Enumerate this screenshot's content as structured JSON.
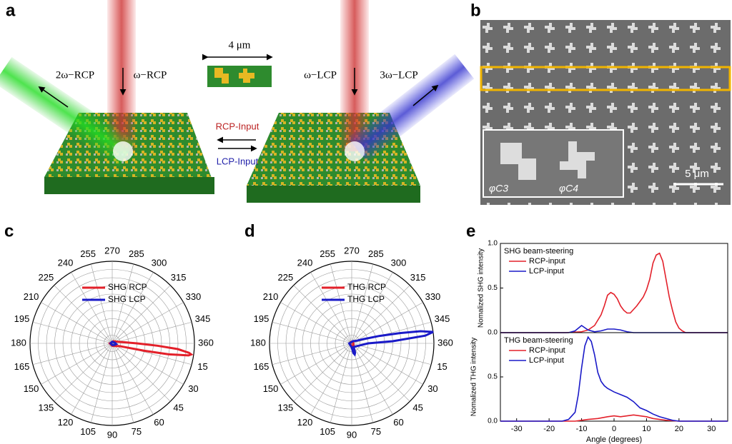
{
  "panels": {
    "a": {
      "label": "a",
      "beam_left": "2ω−RCP",
      "beam_in_left": "ω−RCP",
      "scale": "4 μm",
      "beam_in_right": "ω−LCP",
      "beam_right": "3ω−LCP",
      "rcp_input": "RCP-Input",
      "lcp_input": "LCP-Input"
    },
    "b": {
      "label": "b",
      "scale": "5 μm",
      "phi_c3": "φC3",
      "phi_c4": "φC4"
    },
    "c": {
      "label": "c"
    },
    "d": {
      "label": "d"
    },
    "e": {
      "label": "e"
    }
  },
  "chart_data": [
    {
      "type": "polar",
      "thetaticks": [
        15,
        30,
        45,
        60,
        75,
        90,
        105,
        120,
        135,
        150,
        165,
        180,
        195,
        210,
        225,
        240,
        255,
        270,
        285,
        300,
        315,
        330,
        345,
        360
      ],
      "rlim": [
        0,
        1
      ],
      "rticks": [
        0.1,
        0.2,
        0.3,
        0.4,
        0.5,
        0.6,
        0.7,
        0.8,
        0.9,
        1
      ],
      "grid": true,
      "series": [
        {
          "name": "SHG RCP",
          "color": "#e3202a",
          "theta": [
            180,
            300,
            340,
            355,
            0,
            3,
            5,
            7,
            8,
            9,
            11,
            13,
            16,
            20,
            40,
            90,
            180
          ],
          "values": [
            0.03,
            0.03,
            0.06,
            0.15,
            0.3,
            0.55,
            0.8,
            0.94,
            0.97,
            0.94,
            0.7,
            0.4,
            0.18,
            0.1,
            0.05,
            0.03,
            0.03
          ]
        },
        {
          "name": "SHG LCP",
          "color": "#1a1ac8",
          "theta": [
            0,
            10,
            20,
            40,
            90,
            180,
            270,
            340,
            360
          ],
          "values": [
            0.04,
            0.05,
            0.04,
            0.03,
            0.02,
            0.02,
            0.02,
            0.03,
            0.04
          ]
        }
      ]
    },
    {
      "type": "polar",
      "thetaticks": [
        15,
        30,
        45,
        60,
        75,
        90,
        105,
        120,
        135,
        150,
        165,
        180,
        195,
        210,
        225,
        240,
        255,
        270,
        285,
        300,
        315,
        330,
        345,
        360
      ],
      "rlim": [
        0,
        1
      ],
      "rticks": [
        0.1,
        0.2,
        0.3,
        0.4,
        0.5,
        0.6,
        0.7,
        0.8,
        0.9,
        1
      ],
      "grid": true,
      "series": [
        {
          "name": "THG RCP",
          "color": "#e3202a",
          "theta": [
            0,
            45,
            90,
            135,
            180,
            225,
            270,
            315,
            360
          ],
          "values": [
            0.02,
            0.03,
            0.04,
            0.02,
            0.02,
            0.02,
            0.02,
            0.02,
            0.02
          ]
        },
        {
          "name": "THG LCP",
          "color": "#1a1ac8",
          "theta": [
            60,
            70,
            75,
            80,
            90,
            180,
            300,
            330,
            340,
            345,
            348,
            350,
            352,
            354,
            357,
            360
          ],
          "values": [
            0.05,
            0.12,
            0.14,
            0.12,
            0.05,
            0.03,
            0.03,
            0.06,
            0.15,
            0.35,
            0.6,
            0.85,
            1.0,
            0.9,
            0.5,
            0.2
          ]
        }
      ]
    },
    {
      "type": "line",
      "ylabel": "Nomalized SHG intensity",
      "legend_title": "SHG beam-steering",
      "xlim": [
        -35,
        35
      ],
      "ylim": [
        0,
        1
      ],
      "yticks": [
        {
          "value": 0,
          "label": "0.0"
        },
        {
          "value": 0.5,
          "label": "0.5"
        },
        {
          "value": 1,
          "label": "1.0"
        }
      ],
      "series": [
        {
          "name": "RCP-input",
          "color": "#e3202a",
          "x": [
            -35,
            -15,
            -10,
            -8,
            -6,
            -4,
            -3,
            -2,
            -1,
            0,
            1,
            2,
            3,
            4,
            5,
            6,
            7,
            8,
            9,
            10,
            11,
            12,
            13,
            14,
            15,
            16,
            17,
            18,
            19,
            20,
            21,
            22,
            35
          ],
          "values": [
            0,
            0,
            0.01,
            0.03,
            0.08,
            0.2,
            0.3,
            0.42,
            0.45,
            0.43,
            0.38,
            0.3,
            0.25,
            0.22,
            0.22,
            0.26,
            0.3,
            0.35,
            0.4,
            0.48,
            0.6,
            0.78,
            0.87,
            0.89,
            0.8,
            0.6,
            0.4,
            0.25,
            0.12,
            0.05,
            0.02,
            0,
            0
          ]
        },
        {
          "name": "LCP-input",
          "color": "#1a1ac8",
          "x": [
            -35,
            -14,
            -12,
            -10,
            -8,
            -6,
            -4,
            -2,
            0,
            2,
            4,
            6,
            10,
            35
          ],
          "values": [
            0,
            0,
            0.02,
            0.08,
            0.03,
            0.01,
            0.02,
            0.04,
            0.04,
            0.03,
            0.01,
            0,
            0,
            0
          ]
        }
      ]
    },
    {
      "type": "line",
      "ylabel": "Nomalized THG intensity",
      "xlabel": "Angle (degrees)",
      "legend_title": "THG beam-steering",
      "xlim": [
        -35,
        35
      ],
      "ylim": [
        0,
        1
      ],
      "xticks": [
        -30,
        -20,
        -10,
        0,
        10,
        20,
        30
      ],
      "yticks": [
        {
          "value": 0,
          "label": "0.0"
        },
        {
          "value": 0.5,
          "label": "0.5"
        }
      ],
      "series": [
        {
          "name": "RCP-input",
          "color": "#e3202a",
          "x": [
            -35,
            -12,
            -8,
            -5,
            -2,
            0,
            2,
            4,
            6,
            8,
            10,
            12,
            14,
            16,
            20,
            35
          ],
          "values": [
            0,
            0,
            0.02,
            0.03,
            0.05,
            0.06,
            0.05,
            0.06,
            0.07,
            0.06,
            0.05,
            0.03,
            0.02,
            0.01,
            0,
            0
          ]
        },
        {
          "name": "LCP-input",
          "color": "#1a1ac8",
          "x": [
            -35,
            -16,
            -14,
            -12,
            -11,
            -10,
            -9,
            -8,
            -7,
            -6,
            -5,
            -4,
            -3,
            -2,
            -1,
            0,
            2,
            4,
            6,
            8,
            10,
            12,
            14,
            16,
            18,
            20,
            35
          ],
          "values": [
            0,
            0,
            0.02,
            0.1,
            0.3,
            0.6,
            0.85,
            0.95,
            0.9,
            0.75,
            0.55,
            0.45,
            0.4,
            0.37,
            0.35,
            0.33,
            0.3,
            0.27,
            0.22,
            0.15,
            0.12,
            0.08,
            0.05,
            0.03,
            0.01,
            0,
            0
          ]
        }
      ]
    }
  ]
}
